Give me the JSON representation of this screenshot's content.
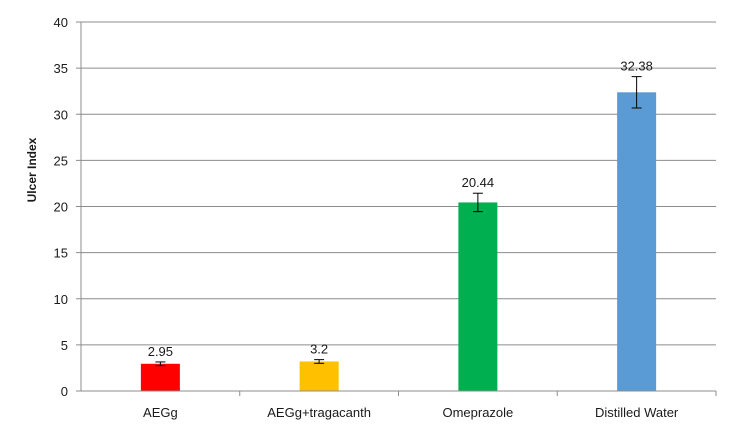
{
  "chart_data": {
    "type": "bar",
    "title": "",
    "xlabel": "",
    "ylabel": "Ulcer Index",
    "ylim": [
      0,
      40
    ],
    "yticks": [
      0,
      5,
      10,
      15,
      20,
      25,
      30,
      35,
      40
    ],
    "grid": true,
    "legend": "none",
    "categories": [
      "AEGg",
      "AEGg+tragacanth",
      "Omeprazole",
      "Distilled Water"
    ],
    "values": [
      2.95,
      3.2,
      20.44,
      32.38
    ],
    "data_labels": [
      "2.95",
      "3.2",
      "20.44",
      "32.38"
    ],
    "error": [
      0.2,
      0.2,
      1.0,
      1.7
    ],
    "colors": [
      "#ff0000",
      "#ffc000",
      "#00b050",
      "#5b9bd5"
    ]
  }
}
